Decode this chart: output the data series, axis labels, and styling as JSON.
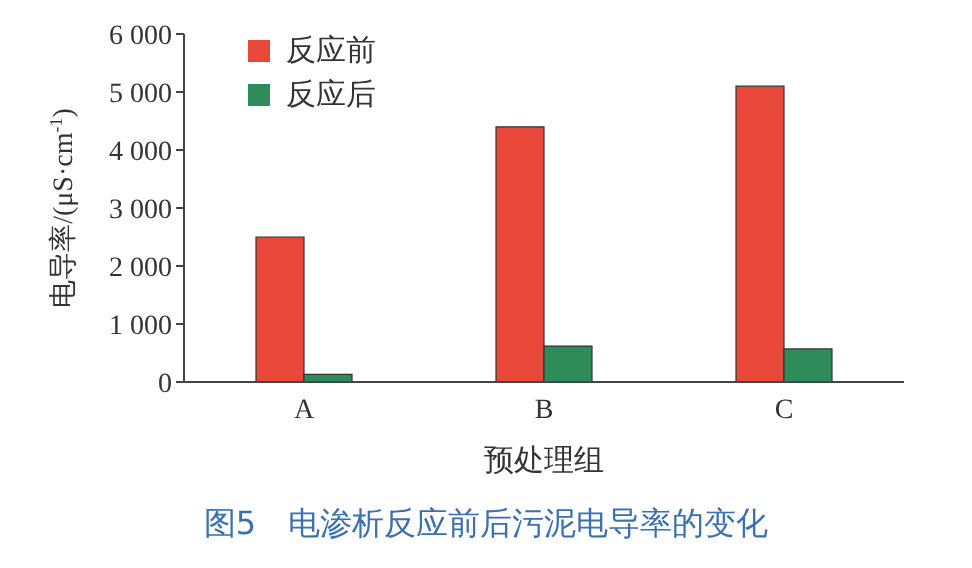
{
  "chart_data": {
    "type": "bar",
    "title": "图5　电渗析反应前后污泥电导率的变化",
    "xlabel": "预处理组",
    "ylabel": "电导率/(μS·cm$^{-1}$)",
    "categories": [
      "A",
      "B",
      "C"
    ],
    "series": [
      {
        "name": "反应前",
        "color": "#e8473a",
        "values": [
          2500,
          4400,
          5100
        ]
      },
      {
        "name": "反应后",
        "color": "#2e8b5a",
        "values": [
          130,
          620,
          570
        ]
      }
    ],
    "ylim": [
      0,
      6000
    ],
    "yticks": [
      0,
      {
        "value": 1000,
        "label": "1 000"
      },
      {
        "value": 2000,
        "label": "2 000"
      },
      {
        "value": 3000,
        "label": "3 000"
      },
      {
        "value": 4000,
        "label": "4 000"
      },
      {
        "value": 5000,
        "label": "5 000"
      },
      {
        "value": 6000,
        "label": "6 000"
      }
    ],
    "grid": false,
    "legend": "top left"
  }
}
